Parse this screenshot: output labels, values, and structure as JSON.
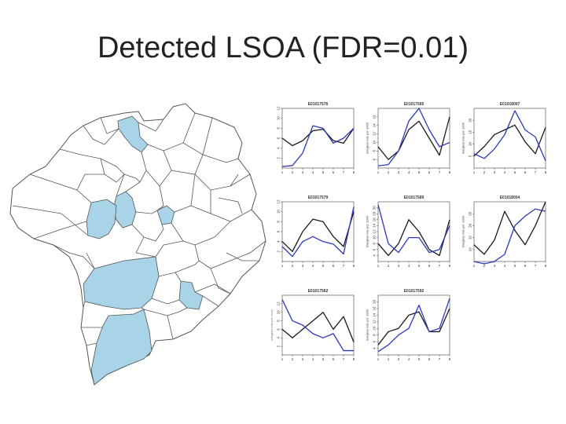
{
  "slide": {
    "title": "Detected LSOA (FDR=0.01)"
  },
  "colors": {
    "observed": "#1a1a1a",
    "expected": "#2a3ab8",
    "detected_fill": "#a9d3e6",
    "boundary": "#555555"
  },
  "chart_data": [
    {
      "type": "line",
      "title": "E01017576",
      "xlabel": "",
      "ylabel": "",
      "x": [
        1,
        2,
        3,
        4,
        5,
        6,
        7,
        8
      ],
      "xlim": [
        1,
        8
      ],
      "ylim": [
        0,
        12
      ],
      "yticks": [
        2,
        4,
        6,
        8,
        10,
        12
      ],
      "series": [
        {
          "values": [
            6,
            4.5,
            5.5,
            7.5,
            7.8,
            5.5,
            5,
            8
          ]
        },
        {
          "values": [
            0.3,
            0.5,
            3,
            8.5,
            8,
            5,
            6,
            8
          ]
        }
      ]
    },
    {
      "type": "line",
      "title": "E01017565",
      "xlabel": "",
      "ylabel": "Burglary rate per 1000",
      "x": [
        1,
        2,
        3,
        4,
        5,
        6,
        7,
        8
      ],
      "xlim": [
        1,
        8
      ],
      "ylim": [
        4,
        18
      ],
      "yticks": [
        6,
        8,
        10,
        12,
        14,
        16
      ],
      "series": [
        {
          "values": [
            9,
            6,
            8,
            13,
            15,
            11,
            7,
            16
          ]
        },
        {
          "values": [
            4.5,
            4.8,
            8,
            15,
            18,
            13,
            9,
            10
          ]
        }
      ]
    },
    {
      "type": "line",
      "title": "E01018007",
      "xlabel": "",
      "ylabel": "Burglary rate per 1000",
      "x": [
        1,
        2,
        3,
        4,
        5,
        6,
        7,
        8
      ],
      "xlim": [
        1,
        8
      ],
      "ylim": [
        0,
        25
      ],
      "yticks": [
        5,
        10,
        15,
        20
      ],
      "series": [
        {
          "values": [
            5,
            9,
            14,
            16,
            18,
            11,
            6,
            17
          ]
        },
        {
          "values": [
            6,
            4,
            8,
            14,
            24,
            16,
            13,
            3
          ]
        }
      ]
    },
    {
      "type": "line",
      "title": "E01017579",
      "xlabel": "",
      "ylabel": "",
      "x": [
        1,
        2,
        3,
        4,
        5,
        6,
        7,
        8
      ],
      "xlim": [
        1,
        8
      ],
      "ylim": [
        0,
        12
      ],
      "yticks": [
        2,
        4,
        6,
        8,
        10,
        12
      ],
      "series": [
        {
          "values": [
            4,
            2,
            6,
            8.5,
            8,
            5,
            3,
            10
          ]
        },
        {
          "values": [
            3,
            1,
            4,
            5,
            4,
            3.5,
            1.5,
            11
          ]
        }
      ]
    },
    {
      "type": "line",
      "title": "E01017569",
      "xlabel": "",
      "ylabel": "Burglary rate per 1000",
      "x": [
        1,
        2,
        3,
        4,
        5,
        6,
        7,
        8
      ],
      "xlim": [
        1,
        8
      ],
      "ylim": [
        2,
        22
      ],
      "yticks": [
        4,
        6,
        8,
        10,
        12,
        14,
        16,
        18,
        20
      ],
      "series": [
        {
          "values": [
            8,
            4,
            8,
            16,
            12,
            6,
            4,
            16
          ]
        },
        {
          "values": [
            21,
            8,
            5,
            10,
            10,
            5,
            6,
            14
          ]
        }
      ]
    },
    {
      "type": "line",
      "title": "E01018004",
      "xlabel": "",
      "ylabel": "Burglary rate per 1000",
      "x": [
        1,
        2,
        3,
        4,
        5,
        6,
        7,
        8
      ],
      "xlim": [
        1,
        8
      ],
      "ylim": [
        5,
        30
      ],
      "yticks": [
        10,
        15,
        20,
        25
      ],
      "series": [
        {
          "values": [
            12,
            8,
            14,
            26,
            18,
            12,
            20,
            30
          ]
        },
        {
          "values": [
            5,
            4,
            5,
            8,
            20,
            24,
            27,
            26
          ]
        }
      ]
    },
    {
      "type": "line",
      "title": "E01017562",
      "xlabel": "",
      "ylabel": "Burglary rate per 1000",
      "x": [
        1,
        2,
        3,
        4,
        5,
        6,
        7,
        8
      ],
      "xlim": [
        1,
        8
      ],
      "ylim": [
        0,
        14
      ],
      "yticks": [
        2,
        4,
        6,
        8,
        10,
        12
      ],
      "series": [
        {
          "values": [
            6,
            4,
            6,
            8,
            10,
            6,
            9,
            3
          ]
        },
        {
          "values": [
            13,
            8,
            7,
            5,
            4,
            5,
            1,
            1
          ]
        }
      ]
    },
    {
      "type": "line",
      "title": "E01017592",
      "xlabel": "",
      "ylabel": "Burglary rate per 1000",
      "x": [
        1,
        2,
        3,
        4,
        5,
        6,
        7,
        8
      ],
      "xlim": [
        1,
        8
      ],
      "ylim": [
        2,
        20
      ],
      "yticks": [
        4,
        6,
        8,
        10,
        12,
        14,
        16,
        18
      ],
      "series": [
        {
          "values": [
            5,
            9,
            10,
            14,
            15,
            9,
            9,
            16
          ]
        },
        {
          "values": [
            3,
            5,
            8,
            10,
            17,
            9,
            10,
            19
          ]
        }
      ]
    }
  ]
}
